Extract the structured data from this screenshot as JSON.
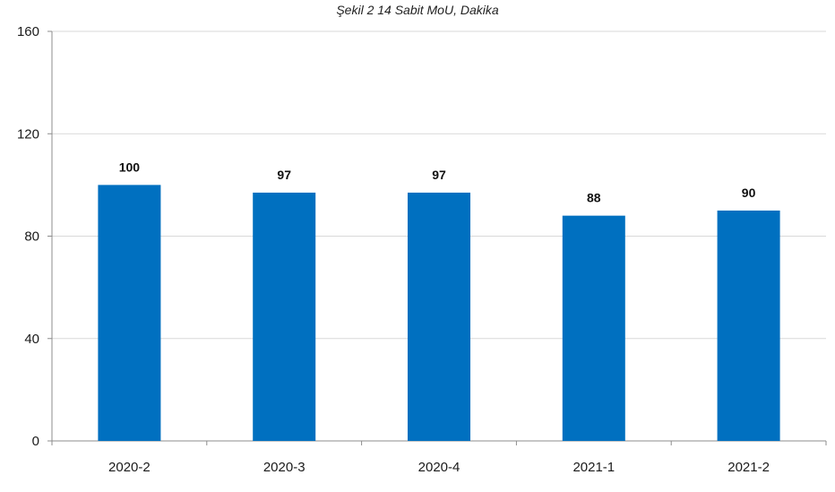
{
  "chart_data": {
    "type": "bar",
    "title": "Şekil 2 14 Sabit MoU, Dakika",
    "xlabel": "",
    "ylabel": "",
    "categories": [
      "2020-2",
      "2020-3",
      "2020-4",
      "2021-1",
      "2021-2"
    ],
    "values": [
      100,
      97,
      97,
      88,
      90
    ],
    "data_labels": [
      "100",
      "97",
      "97",
      "88",
      "90"
    ],
    "ylim": [
      0,
      160
    ],
    "yticks": [
      0,
      40,
      80,
      120,
      160
    ],
    "grid": true,
    "legend": "none",
    "bar_color": "#0070C0",
    "grid_color": "#d9d9d9",
    "axis_color": "#8c8c8c"
  }
}
